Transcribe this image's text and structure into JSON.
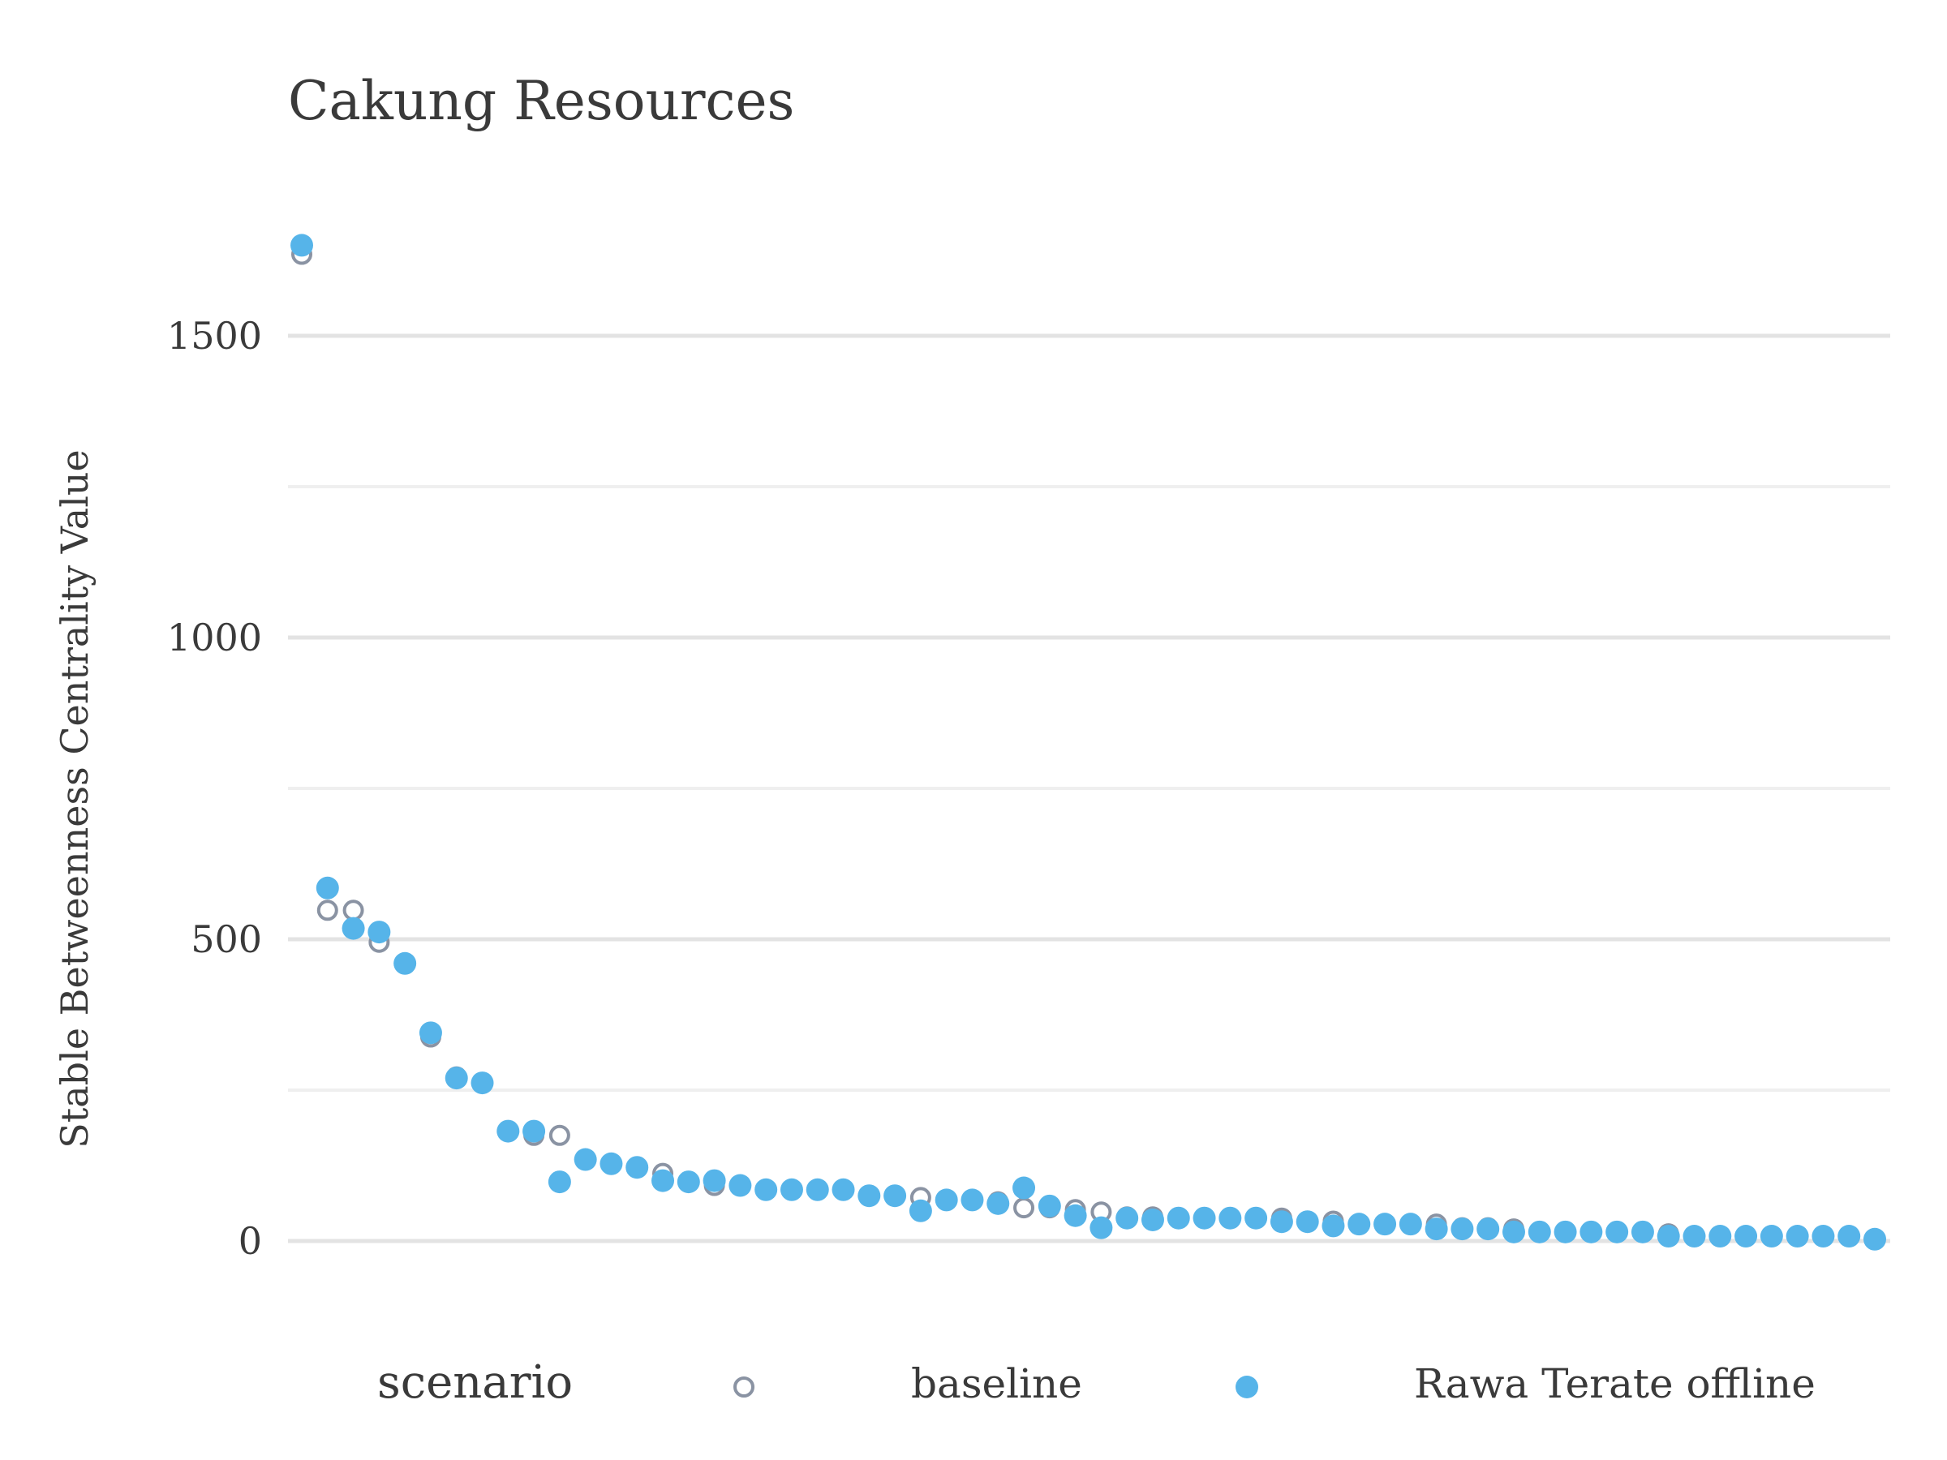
{
  "chart_data": {
    "type": "scatter",
    "title": "Cakung Resources",
    "xlabel": "",
    "ylabel": "Stable Betweenness Centrality Value",
    "ylim": [
      -170,
      1720
    ],
    "yticks": [
      0,
      500,
      1000,
      1500
    ],
    "yticks_minor": [
      250,
      750,
      1250
    ],
    "grid": true,
    "legend": {
      "title": "scenario",
      "position": "bottom"
    },
    "x": [
      1,
      2,
      3,
      4,
      5,
      6,
      7,
      8,
      9,
      10,
      11,
      12,
      13,
      14,
      15,
      16,
      17,
      18,
      19,
      20,
      21,
      22,
      23,
      24,
      25,
      26,
      27,
      28,
      29,
      30,
      31,
      32,
      33,
      34,
      35,
      36,
      37,
      38,
      39,
      40,
      41,
      42,
      43,
      44,
      45,
      46,
      47,
      48,
      49,
      50,
      51,
      52,
      53,
      54,
      55,
      56,
      57,
      58,
      59,
      60,
      61,
      62
    ],
    "series": [
      {
        "name": "baseline",
        "marker": "open-circle",
        "color": "#8a93a3",
        "values": [
          1635,
          548,
          548,
          495,
          460,
          338,
          272,
          262,
          182,
          175,
          175,
          135,
          128,
          122,
          112,
          98,
          92,
          92,
          85,
          85,
          85,
          85,
          75,
          75,
          72,
          68,
          68,
          65,
          55,
          55,
          52,
          48,
          40,
          40,
          38,
          38,
          38,
          38,
          38,
          33,
          33,
          28,
          28,
          28,
          28,
          22,
          22,
          20,
          15,
          15,
          15,
          15,
          15,
          12,
          8,
          8,
          8,
          8,
          8,
          8,
          8,
          3
        ]
      },
      {
        "name": "Rawa Terate offline",
        "marker": "filled-circle",
        "color": "#56b4e9",
        "values": [
          1650,
          585,
          518,
          512,
          460,
          345,
          270,
          262,
          182,
          182,
          98,
          135,
          128,
          122,
          100,
          98,
          100,
          92,
          85,
          85,
          85,
          85,
          75,
          75,
          50,
          68,
          68,
          62,
          88,
          58,
          42,
          22,
          38,
          35,
          38,
          38,
          38,
          38,
          32,
          32,
          25,
          28,
          28,
          28,
          20,
          20,
          20,
          15,
          15,
          15,
          15,
          15,
          15,
          8,
          8,
          8,
          8,
          8,
          8,
          8,
          8,
          3
        ]
      }
    ]
  }
}
